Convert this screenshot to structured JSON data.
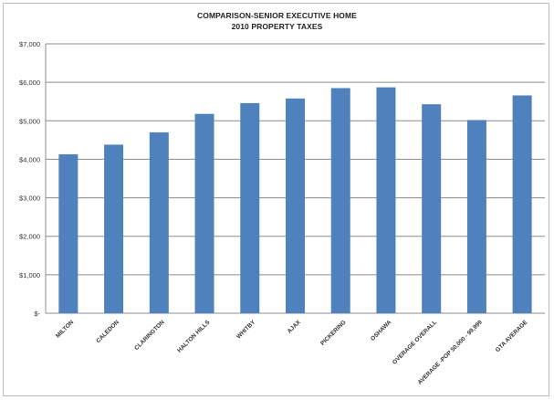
{
  "chart_data": {
    "type": "bar",
    "title": "COMPARISON-SENIOR EXECUTIVE HOME",
    "subtitle": "2010 PROPERTY TAXES",
    "categories": [
      "MILTON",
      "CALEDON",
      "CLARINGTON",
      "HALTON HILLS",
      "WHITBY",
      "AJAX",
      "PICKERING",
      "OSHAWA",
      "OVERAGE OVERALL",
      "AVERAGE -POP 50,000 - 99,999",
      "GTA AVERAGE"
    ],
    "values": [
      4130,
      4380,
      4700,
      5180,
      5460,
      5580,
      5850,
      5870,
      5430,
      5020,
      5660
    ],
    "ylim": [
      0,
      7000
    ],
    "yticks": [
      0,
      1000,
      2000,
      3000,
      4000,
      5000,
      6000,
      7000
    ],
    "ytick_labels": [
      "$-",
      "$1,000",
      "$2,000",
      "$3,000",
      "$4,000",
      "$5,000",
      "$6,000",
      "$7,000"
    ],
    "grid": true,
    "bar_color": "#4f81bd"
  }
}
